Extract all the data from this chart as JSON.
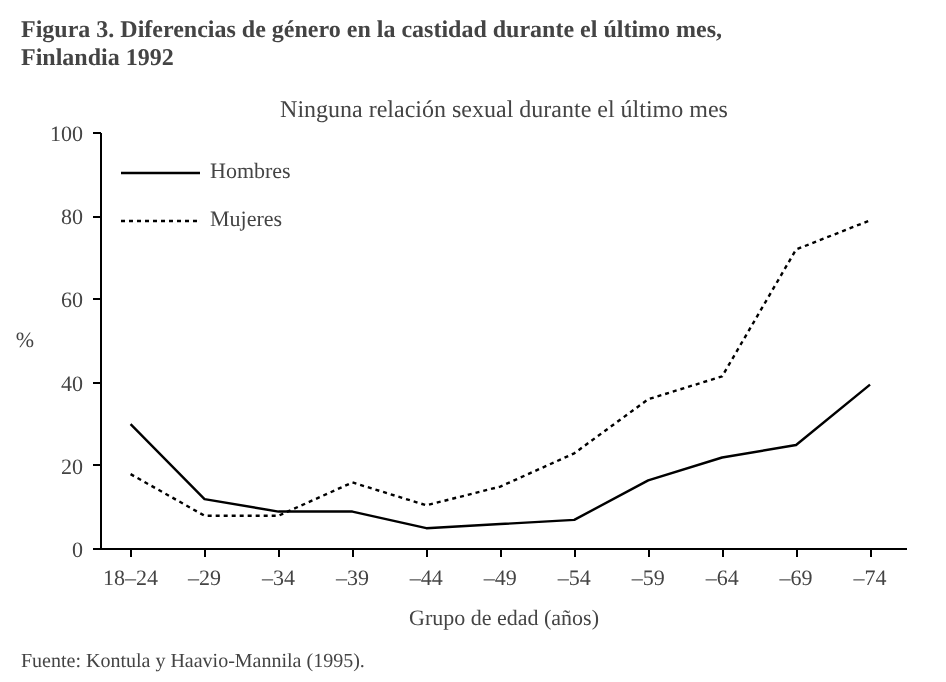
{
  "chart_data": {
    "type": "line",
    "title": "Figura 3. Diferencias de género en la castidad durante el último mes, Finlandia 1992",
    "subtitle": "Ninguna relación sexual durante el último mes",
    "xlabel": "Grupo de edad (años)",
    "ylabel": "%",
    "categories": [
      "18–24",
      "–29",
      "–34",
      "–39",
      "–44",
      "–49",
      "–54",
      "–59",
      "–64",
      "–69",
      "–74"
    ],
    "series": [
      {
        "name": "Hombres",
        "color": "#000000",
        "line_style": "solid",
        "values": [
          30,
          12,
          9,
          9,
          5,
          6,
          7,
          16.5,
          22,
          25,
          39.5
        ]
      },
      {
        "name": "Mujeres",
        "color": "#000000",
        "line_style": "dotted",
        "values": [
          18,
          8,
          8,
          16,
          10.5,
          15,
          23,
          36,
          41.5,
          72,
          79
        ]
      }
    ],
    "ylim": [
      0,
      100
    ],
    "yticks": [
      0,
      20,
      40,
      60,
      80,
      100
    ],
    "grid": false,
    "legend": "top left",
    "marker": "none",
    "annotations": [
      "Fuente: Kontula y Haavio-Mannila (1995)."
    ]
  }
}
